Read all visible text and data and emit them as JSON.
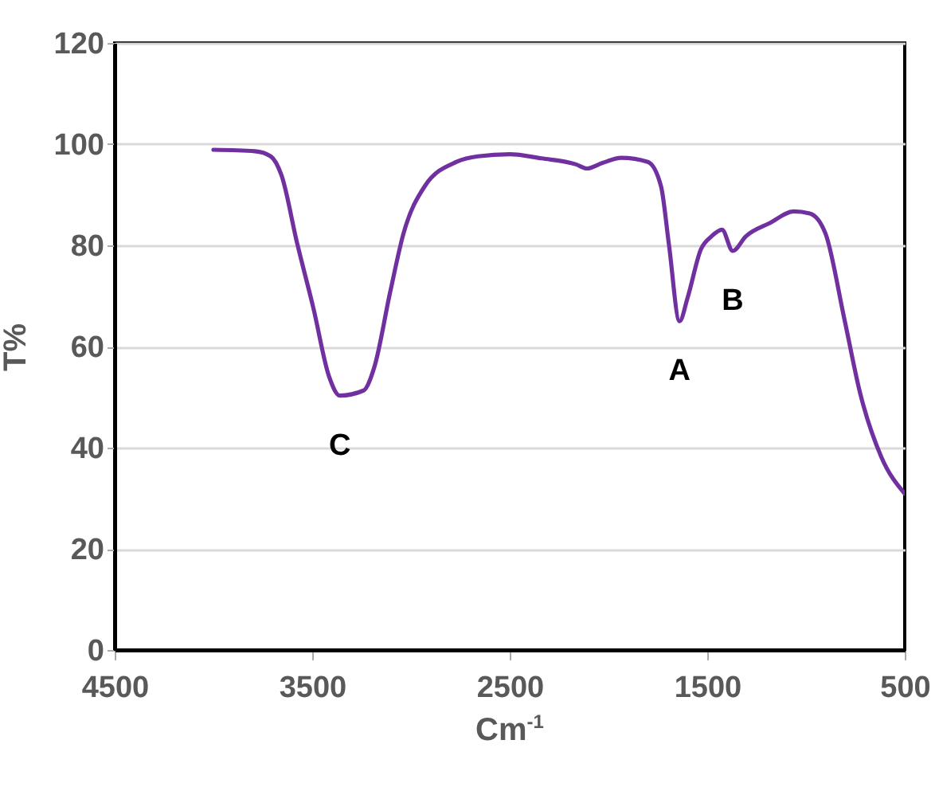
{
  "chart_data": {
    "type": "line",
    "xlabel": "Cm$^{-1}$",
    "ylabel": "T%",
    "x": [
      4000,
      3790,
      3710,
      3656,
      3575,
      3494,
      3414,
      3360,
      3240,
      3185,
      3105,
      3038,
      2930,
      2769,
      2661,
      2500,
      2339,
      2164,
      2110,
      2030,
      1935,
      1801,
      1734,
      1694,
      1640,
      1599,
      1532,
      1478,
      1425,
      1371,
      1304,
      1183,
      1062,
      981,
      901,
      806,
      726,
      619,
      500
    ],
    "series": [
      {
        "color": "#7030a0",
        "values": [
          98.9,
          98.6,
          97.6,
          93.9,
          80.2,
          67.6,
          54,
          50.3,
          51.3,
          56,
          70.8,
          82.3,
          91.7,
          96.5,
          97.6,
          98,
          97.2,
          96,
          95.2,
          96.3,
          97.3,
          96.5,
          91.7,
          80.2,
          65,
          69.7,
          79.2,
          81.8,
          83.1,
          78.9,
          81.8,
          84.4,
          86.7,
          86.3,
          82.3,
          65.5,
          50.8,
          38.2,
          30.9
        ]
      }
    ],
    "annotations": [
      {
        "text": "C",
        "x": 3360,
        "y": 50.3
      },
      {
        "text": "A",
        "x": 1640,
        "y": 65
      },
      {
        "text": "B",
        "x": 1371,
        "y": 78.9
      }
    ],
    "xlim": [
      4500,
      500
    ],
    "xticks": [
      4500,
      3500,
      2500,
      1500,
      500
    ],
    "ylim": [
      0,
      120
    ],
    "yticks": [
      0,
      20,
      40,
      60,
      80,
      100,
      120
    ],
    "grid": "y",
    "line_style": "solid",
    "marker": "none"
  }
}
